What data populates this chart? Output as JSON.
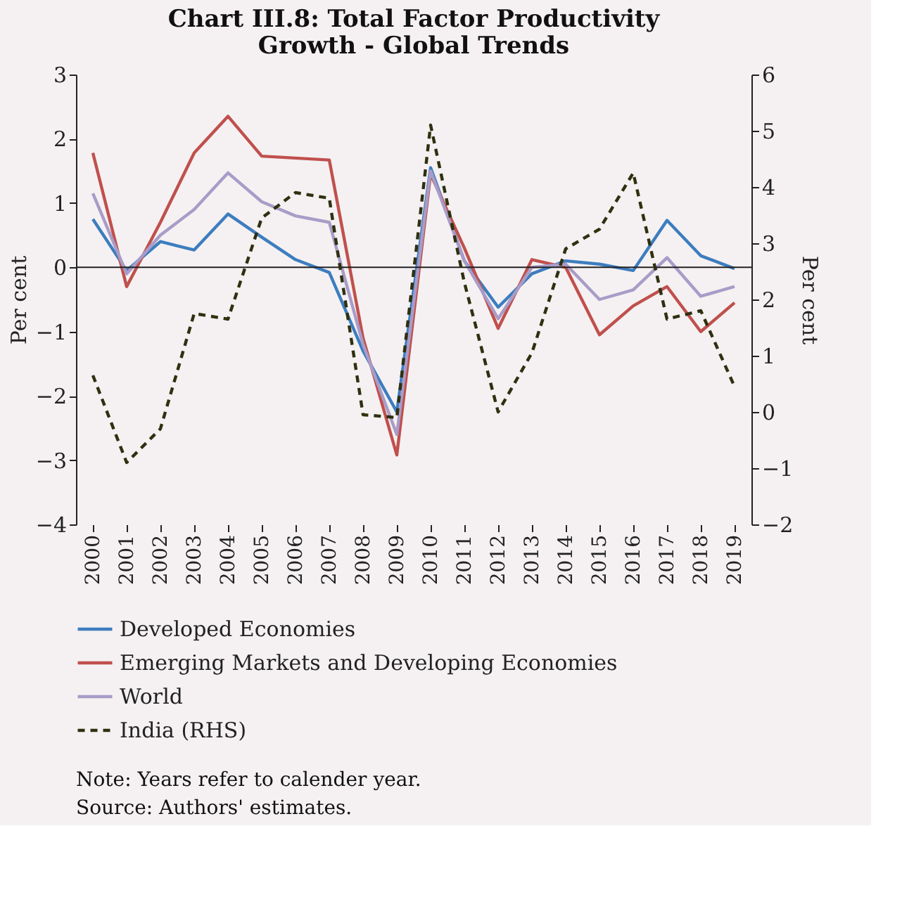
{
  "chart_data": {
    "type": "line",
    "title": "Chart III.8: Total Factor Productivity Growth - Global Trends",
    "ylabel": "Per cent",
    "y2label": "Per cent",
    "categories": [
      "2000",
      "2001",
      "2002",
      "2003",
      "2004",
      "2005",
      "2006",
      "2007",
      "2008",
      "2009",
      "2010",
      "2011",
      "2012",
      "2013",
      "2014",
      "2015",
      "2016",
      "2017",
      "2018",
      "2019"
    ],
    "series": [
      {
        "name": "Developed Economies",
        "color": "#3d7dbf",
        "line_style": "solid",
        "values": [
          0.75,
          -0.05,
          0.4,
          0.27,
          0.83,
          0.47,
          0.12,
          -0.08,
          -1.3,
          -2.25,
          1.55,
          0.1,
          -0.62,
          -0.1,
          0.1,
          0.05,
          -0.05,
          0.73,
          0.18,
          -0.02
        ]
      },
      {
        "name": "Emerging Markets and Developing Economies",
        "color": "#c0504d",
        "line_style": "solid",
        "values": [
          1.78,
          -0.3,
          0.7,
          1.78,
          2.35,
          1.73,
          1.7,
          1.67,
          -1.1,
          -2.92,
          1.45,
          0.3,
          -0.95,
          0.12,
          0.0,
          -1.05,
          -0.6,
          -0.3,
          -1.0,
          -0.55
        ]
      },
      {
        "name": "World",
        "color": "#a89cc8",
        "line_style": "solid",
        "values": [
          1.15,
          -0.1,
          0.5,
          0.9,
          1.47,
          1.02,
          0.8,
          0.7,
          -1.2,
          -2.6,
          1.5,
          0.1,
          -0.8,
          0.0,
          0.05,
          -0.5,
          -0.35,
          0.15,
          -0.45,
          -0.3
        ]
      },
      {
        "name": "India (RHS)",
        "color": "#2f3010",
        "line_style": "dashed",
        "axis": "y2",
        "values": [
          0.65,
          -0.9,
          -0.3,
          1.75,
          1.65,
          3.45,
          3.9,
          3.8,
          -0.05,
          -0.1,
          5.1,
          2.3,
          0.0,
          1.05,
          2.9,
          3.25,
          4.25,
          1.65,
          1.8,
          0.45
        ]
      }
    ],
    "ylim": [
      -4,
      3
    ],
    "yticks": [
      -4,
      -3,
      -2,
      -1,
      0,
      1,
      2,
      3
    ],
    "y2lim": [
      -2,
      6
    ],
    "y2ticks": [
      -2,
      -1,
      0,
      1,
      2,
      3,
      4,
      5,
      6
    ],
    "grid": false,
    "ref_lines": [
      {
        "axis": "y",
        "value": 0
      }
    ],
    "legend": "bottom",
    "marker": "none",
    "annotations": [
      "Note: Years refer to calender year.",
      "Source: Authors' estimates."
    ]
  }
}
